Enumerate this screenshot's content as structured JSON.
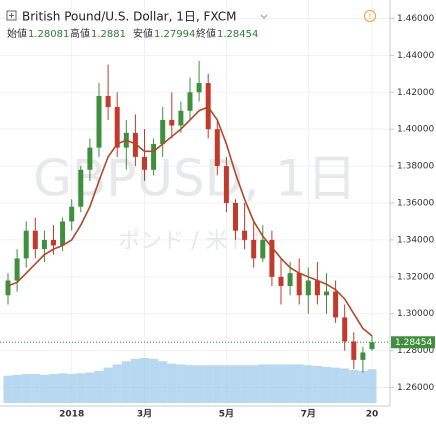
{
  "chart_data": {
    "type": "candlestick",
    "title": "British Pound/U.S. Dollar, 1日, FXCM",
    "watermark": "GBPUSD, 1日",
    "watermark_sub": "ポンド / 米ドル",
    "ohlc_labels": [
      "始値",
      "高値",
      "安値",
      "終値"
    ],
    "categories": [
      null,
      null,
      null,
      null,
      null,
      null,
      null,
      "2018",
      null,
      null,
      null,
      null,
      null,
      null,
      null,
      "3月",
      null,
      null,
      null,
      null,
      null,
      null,
      null,
      null,
      "5月",
      null,
      null,
      null,
      null,
      null,
      null,
      null,
      null,
      "7月",
      null,
      null,
      null,
      null,
      null,
      null,
      "20"
    ],
    "open": [
      1.31,
      1.318,
      1.33,
      1.345,
      1.335,
      1.34,
      1.337,
      1.35,
      1.358,
      1.378,
      1.39,
      1.418,
      1.412,
      1.39,
      1.398,
      1.385,
      1.378,
      1.392,
      1.405,
      1.402,
      1.41,
      1.42,
      1.425,
      1.4,
      1.38,
      1.36,
      1.345,
      1.34,
      1.33,
      1.34,
      1.32,
      1.315,
      1.322,
      1.31,
      1.318,
      1.31,
      1.312,
      1.298,
      1.285,
      1.275,
      1.28081
    ],
    "high": [
      1.322,
      1.335,
      1.35,
      1.352,
      1.345,
      1.348,
      1.352,
      1.362,
      1.38,
      1.395,
      1.425,
      1.435,
      1.42,
      1.405,
      1.408,
      1.4,
      1.395,
      1.412,
      1.42,
      1.415,
      1.428,
      1.437,
      1.43,
      1.405,
      1.385,
      1.362,
      1.36,
      1.35,
      1.348,
      1.345,
      1.33,
      1.328,
      1.33,
      1.325,
      1.328,
      1.322,
      1.318,
      1.305,
      1.29,
      1.282,
      1.2881
    ],
    "low": [
      1.305,
      1.312,
      1.325,
      1.33,
      1.328,
      1.332,
      1.334,
      1.345,
      1.355,
      1.372,
      1.385,
      1.405,
      1.385,
      1.378,
      1.38,
      1.372,
      1.375,
      1.385,
      1.395,
      1.398,
      1.405,
      1.415,
      1.395,
      1.375,
      1.355,
      1.34,
      1.335,
      1.325,
      1.328,
      1.315,
      1.305,
      1.31,
      1.305,
      1.3,
      1.305,
      1.3,
      1.295,
      1.28,
      1.27,
      1.268,
      1.27994
    ],
    "close": [
      1.318,
      1.33,
      1.345,
      1.335,
      1.34,
      1.337,
      1.35,
      1.358,
      1.378,
      1.39,
      1.418,
      1.412,
      1.39,
      1.398,
      1.385,
      1.378,
      1.392,
      1.405,
      1.402,
      1.41,
      1.42,
      1.425,
      1.4,
      1.38,
      1.36,
      1.345,
      1.34,
      1.33,
      1.34,
      1.32,
      1.315,
      1.322,
      1.31,
      1.318,
      1.31,
      1.312,
      1.298,
      1.285,
      1.275,
      1.279,
      1.28454
    ],
    "up_color": "#3f8f3f",
    "down_color": "#c23a2b",
    "ma": {
      "color": "#b0492c",
      "values": [
        1.315,
        1.317,
        1.322,
        1.327,
        1.332,
        1.335,
        1.337,
        1.34,
        1.348,
        1.358,
        1.372,
        1.385,
        1.392,
        1.394,
        1.392,
        1.388,
        1.388,
        1.392,
        1.396,
        1.4,
        1.405,
        1.41,
        1.412,
        1.405,
        1.392,
        1.376,
        1.362,
        1.35,
        1.342,
        1.336,
        1.33,
        1.325,
        1.322,
        1.32,
        1.318,
        1.316,
        1.313,
        1.308,
        1.3,
        1.292,
        1.288
      ]
    },
    "volume": {
      "color": "#9fcbeb",
      "values": [
        34,
        35,
        36,
        36,
        35,
        36,
        37,
        36,
        37,
        38,
        40,
        44,
        48,
        52,
        55,
        56,
        55,
        52,
        49,
        48,
        47,
        47,
        47,
        47,
        47,
        47,
        47,
        47,
        48,
        48,
        48,
        48,
        48,
        47,
        46,
        45,
        44,
        43,
        41,
        40,
        42
      ]
    },
    "ylim": [
      1.25,
      1.47
    ],
    "yticks": [
      {
        "value": 1.26,
        "label": "1.26000"
      },
      {
        "value": 1.28,
        "label": "1.28000"
      },
      {
        "value": 1.3,
        "label": "1.30000"
      },
      {
        "value": 1.32,
        "label": "1.32000"
      },
      {
        "value": 1.34,
        "label": "1.34000"
      },
      {
        "value": 1.36,
        "label": "1.36000"
      },
      {
        "value": 1.38,
        "label": "1.38000"
      },
      {
        "value": 1.4,
        "label": "1.40000"
      },
      {
        "value": 1.42,
        "label": "1.42000"
      },
      {
        "value": 1.44,
        "label": "1.44000"
      },
      {
        "value": 1.46,
        "label": "1.46000"
      }
    ],
    "grid": true
  }
}
